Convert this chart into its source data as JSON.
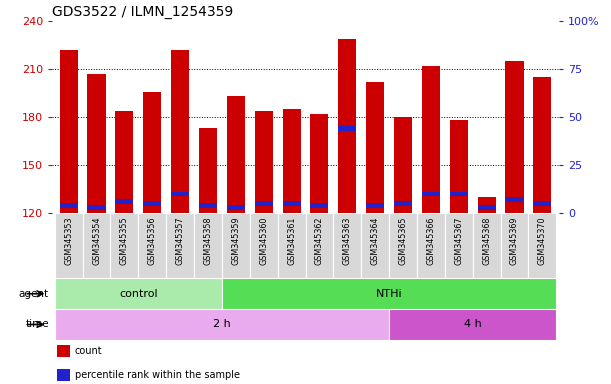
{
  "title": "GDS3522 / ILMN_1254359",
  "samples": [
    "GSM345353",
    "GSM345354",
    "GSM345355",
    "GSM345356",
    "GSM345357",
    "GSM345358",
    "GSM345359",
    "GSM345360",
    "GSM345361",
    "GSM345362",
    "GSM345363",
    "GSM345364",
    "GSM345365",
    "GSM345366",
    "GSM345367",
    "GSM345368",
    "GSM345369",
    "GSM345370"
  ],
  "counts": [
    222,
    207,
    184,
    196,
    222,
    173,
    193,
    184,
    185,
    182,
    229,
    202,
    180,
    212,
    178,
    130,
    215,
    205
  ],
  "percentiles": [
    4,
    3,
    6,
    5,
    10,
    4,
    3,
    5,
    5,
    4,
    44,
    4,
    5,
    10,
    10,
    3,
    7,
    5
  ],
  "ymin": 120,
  "ymax": 240,
  "yticks": [
    120,
    150,
    180,
    210,
    240
  ],
  "right_yticks_vals": [
    0,
    25,
    50,
    75,
    100
  ],
  "right_ytick_labels": [
    "0",
    "25",
    "50",
    "75",
    "100%"
  ],
  "bar_color": "#cc0000",
  "percentile_color": "#2222cc",
  "title_fontsize": 10,
  "agent_groups": [
    {
      "label": "control",
      "start": 0,
      "end": 6,
      "color": "#aaeaaa"
    },
    {
      "label": "NTHi",
      "start": 6,
      "end": 18,
      "color": "#55dd55"
    }
  ],
  "time_groups": [
    {
      "label": "2 h",
      "start": 0,
      "end": 12,
      "color": "#eaaaee"
    },
    {
      "label": "4 h",
      "start": 12,
      "end": 18,
      "color": "#cc55cc"
    }
  ],
  "legend": [
    {
      "label": "count",
      "color": "#cc0000"
    },
    {
      "label": "percentile rank within the sample",
      "color": "#2222cc"
    }
  ],
  "bg_color": "#ffffff",
  "grid_color": "#000000",
  "left_tick_color": "#cc0000",
  "right_tick_color": "#2222cc"
}
